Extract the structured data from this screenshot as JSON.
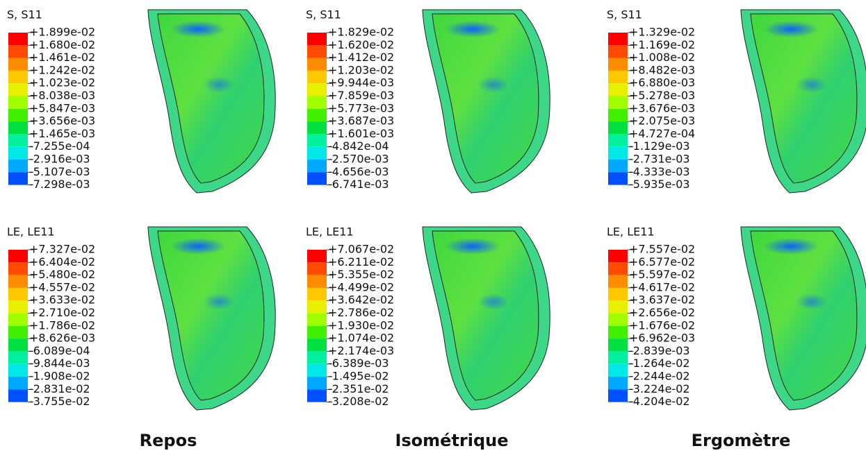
{
  "panels": [
    {
      "title": "S, S11",
      "labels": [
        "+1.899e-02",
        "+1.680e-02",
        "+1.461e-02",
        "+1.242e-02",
        "+1.023e-02",
        "+8.038e-03",
        "+5.847e-03",
        "+3.656e-03",
        "+1.465e-03",
        "-7.255e-04",
        "-2.916e-03",
        "-5.107e-03",
        "-7.298e-03"
      ]
    },
    {
      "title": "S, S11",
      "labels": [
        "+1.829e-02",
        "+1.620e-02",
        "+1.412e-02",
        "+1.203e-02",
        "+9.944e-03",
        "+7.859e-03",
        "+5.773e-03",
        "+3.687e-03",
        "+1.601e-03",
        "-4.842e-04",
        "-2.570e-03",
        "-4.656e-03",
        "-6.741e-03"
      ]
    },
    {
      "title": "S, S11",
      "labels": [
        "+1.329e-02",
        "+1.169e-02",
        "+1.008e-02",
        "+8.482e-03",
        "+6.880e-03",
        "+5.278e-03",
        "+3.676e-03",
        "+2.075e-03",
        "+4.727e-04",
        "-1.129e-03",
        "-2.731e-03",
        "-4.333e-03",
        "-5.935e-03"
      ]
    },
    {
      "title": "LE, LE11",
      "labels": [
        "+7.327e-02",
        "+6.404e-02",
        "+5.480e-02",
        "+4.557e-02",
        "+3.633e-02",
        "+2.710e-02",
        "+1.786e-02",
        "+8.626e-03",
        "-6.089e-04",
        "-9.844e-03",
        "-1.908e-02",
        "-2.831e-02",
        "-3.755e-02"
      ]
    },
    {
      "title": "LE, LE11",
      "labels": [
        "+7.067e-02",
        "+6.211e-02",
        "+5.355e-02",
        "+4.499e-02",
        "+3.642e-02",
        "+2.786e-02",
        "+1.930e-02",
        "+1.074e-02",
        "+2.174e-03",
        "-6.389e-03",
        "-1.495e-02",
        "-2.351e-02",
        "-3.208e-02"
      ]
    },
    {
      "title": "LE, LE11",
      "labels": [
        "+7.557e-02",
        "+6.577e-02",
        "+5.597e-02",
        "+4.617e-02",
        "+3.637e-02",
        "+2.656e-02",
        "+1.676e-02",
        "+6.962e-03",
        "-2.839e-03",
        "-1.264e-02",
        "-2.244e-02",
        "-3.224e-02",
        "-4.204e-02"
      ]
    }
  ],
  "columns": [
    "Repos",
    "Isométrique",
    "Ergomètre"
  ]
}
